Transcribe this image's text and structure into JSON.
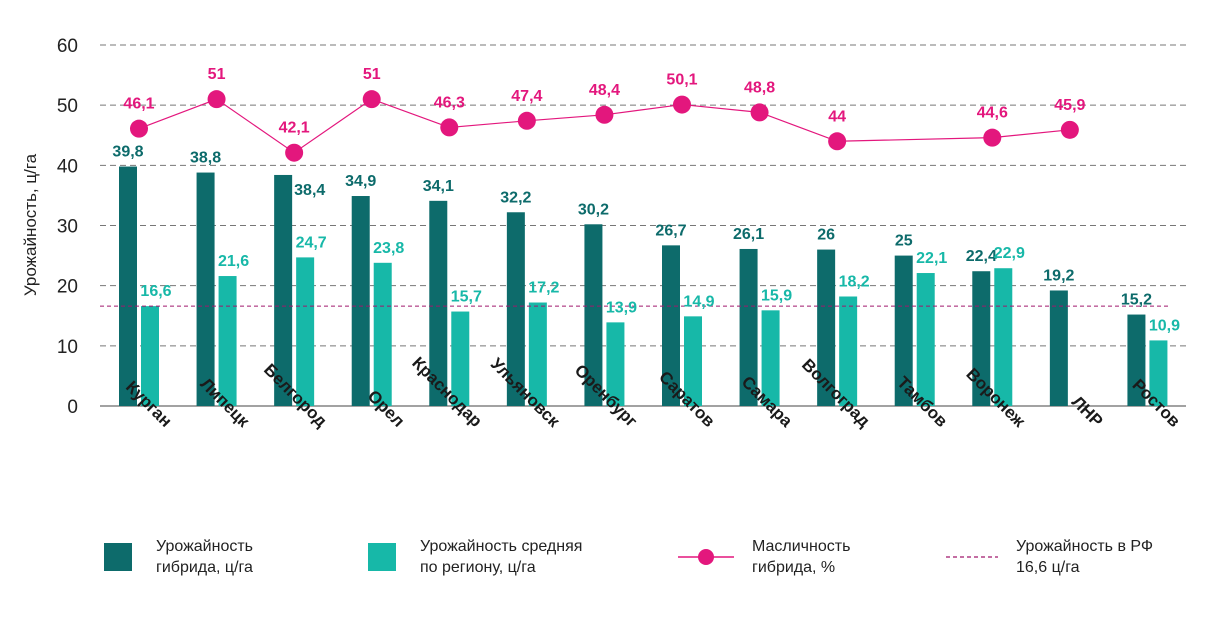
{
  "chart_data": {
    "type": "bar",
    "ylabel": "Урожайность, ц/га",
    "ylim": [
      0,
      60
    ],
    "yticks": [
      0,
      10,
      20,
      30,
      40,
      50,
      60
    ],
    "categories": [
      "Курган",
      "Липецк",
      "Белгород",
      "Орел",
      "Краснодар",
      "Ульяновск",
      "Оренбург",
      "Саратов",
      "Самара",
      "Волгоград",
      "Тамбов",
      "Воронеж",
      "ЛНР",
      "Ростов"
    ],
    "series": [
      {
        "name": "Урожайность гибрида, ц/га",
        "type": "bar",
        "color": "#0d6b6b",
        "values": [
          39.8,
          38.8,
          38.4,
          34.9,
          34.1,
          32.2,
          30.2,
          26.7,
          26.1,
          26,
          25,
          22.4,
          19.2,
          15.2
        ],
        "labels": [
          "39,8",
          "38,8",
          "38,4",
          "34,9",
          "34,1",
          "32,2",
          "30,2",
          "26,7",
          "26,1",
          "26",
          "25",
          "22,4",
          "19,2",
          "15,2"
        ]
      },
      {
        "name": "Урожайность средняя по региону, ц/га",
        "type": "bar",
        "color": "#17b8a8",
        "values": [
          16.6,
          21.6,
          24.7,
          23.8,
          15.7,
          17.2,
          13.9,
          14.9,
          15.9,
          18.2,
          22.1,
          22.9,
          null,
          10.9
        ],
        "labels": [
          "16,6",
          "21,6",
          "24,7",
          "23,8",
          "15,7",
          "17,2",
          "13,9",
          "14,9",
          "15,9",
          "18,2",
          "22,1",
          "22,9",
          "",
          "10,9"
        ]
      },
      {
        "name": "Масличность гибрида, %",
        "type": "line",
        "color": "#e3177d",
        "values": [
          46.1,
          51,
          42.1,
          51,
          46.3,
          47.4,
          48.4,
          50.1,
          48.8,
          44,
          null,
          44.6,
          45.9,
          null
        ],
        "labels": [
          "46,1",
          "51",
          "42,1",
          "51",
          "46,3",
          "47,4",
          "48,4",
          "50,1",
          "48,8",
          "44",
          "",
          "44,6",
          "45,9",
          ""
        ]
      }
    ],
    "reference_line": {
      "name": "Урожайность в РФ 16,6 ц/га",
      "value": 16.6,
      "color": "#a0186c"
    },
    "legend_position": "bottom"
  },
  "legend": [
    {
      "text": "Урожайность\nгибрида, ц/га",
      "color": "#0d6b6b",
      "kind": "square"
    },
    {
      "text": "Урожайность средняя\nпо региону, ц/га",
      "color": "#17b8a8",
      "kind": "square"
    },
    {
      "text": "Масличность\nгибрида, %",
      "color": "#e3177d",
      "kind": "line"
    },
    {
      "text": "Урожайность в РФ\n16,6 ц/га",
      "color": "#a0186c",
      "kind": "dash"
    }
  ]
}
